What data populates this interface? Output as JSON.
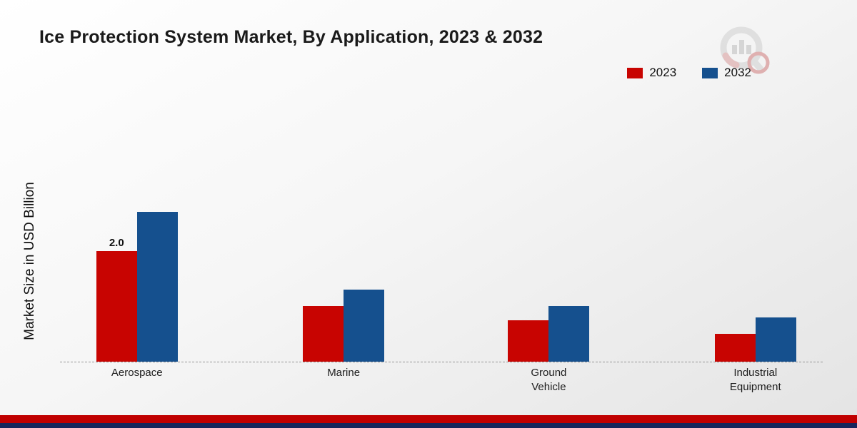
{
  "title": "Ice Protection System Market, By Application, 2023 & 2032",
  "legend": {
    "items": [
      {
        "label": "2023",
        "color": "#c80401"
      },
      {
        "label": "2032",
        "color": "#15508e"
      }
    ]
  },
  "chart_data": {
    "type": "bar",
    "title": "Ice Protection System Market, By Application, 2023 & 2032",
    "ylabel": "Market Size in USD Billion",
    "xlabel": "",
    "categories": [
      "Aerospace",
      "Marine",
      "Ground Vehicle",
      "Industrial Equipment"
    ],
    "series": [
      {
        "name": "2023",
        "color": "#c80401",
        "values": [
          2.0,
          1.0,
          0.75,
          0.5
        ]
      },
      {
        "name": "2032",
        "color": "#15508e",
        "values": [
          2.7,
          1.3,
          1.0,
          0.8
        ]
      }
    ],
    "annotations": [
      {
        "series": "2023",
        "category": "Aerospace",
        "text": "2.0"
      }
    ],
    "ylim": [
      0,
      4.6
    ],
    "grid": false,
    "axis_line": "dashed",
    "legend_position": "top-right"
  },
  "footer": {
    "red_stripe_color": "#c00000",
    "navy_stripe_color": "#16265c"
  }
}
